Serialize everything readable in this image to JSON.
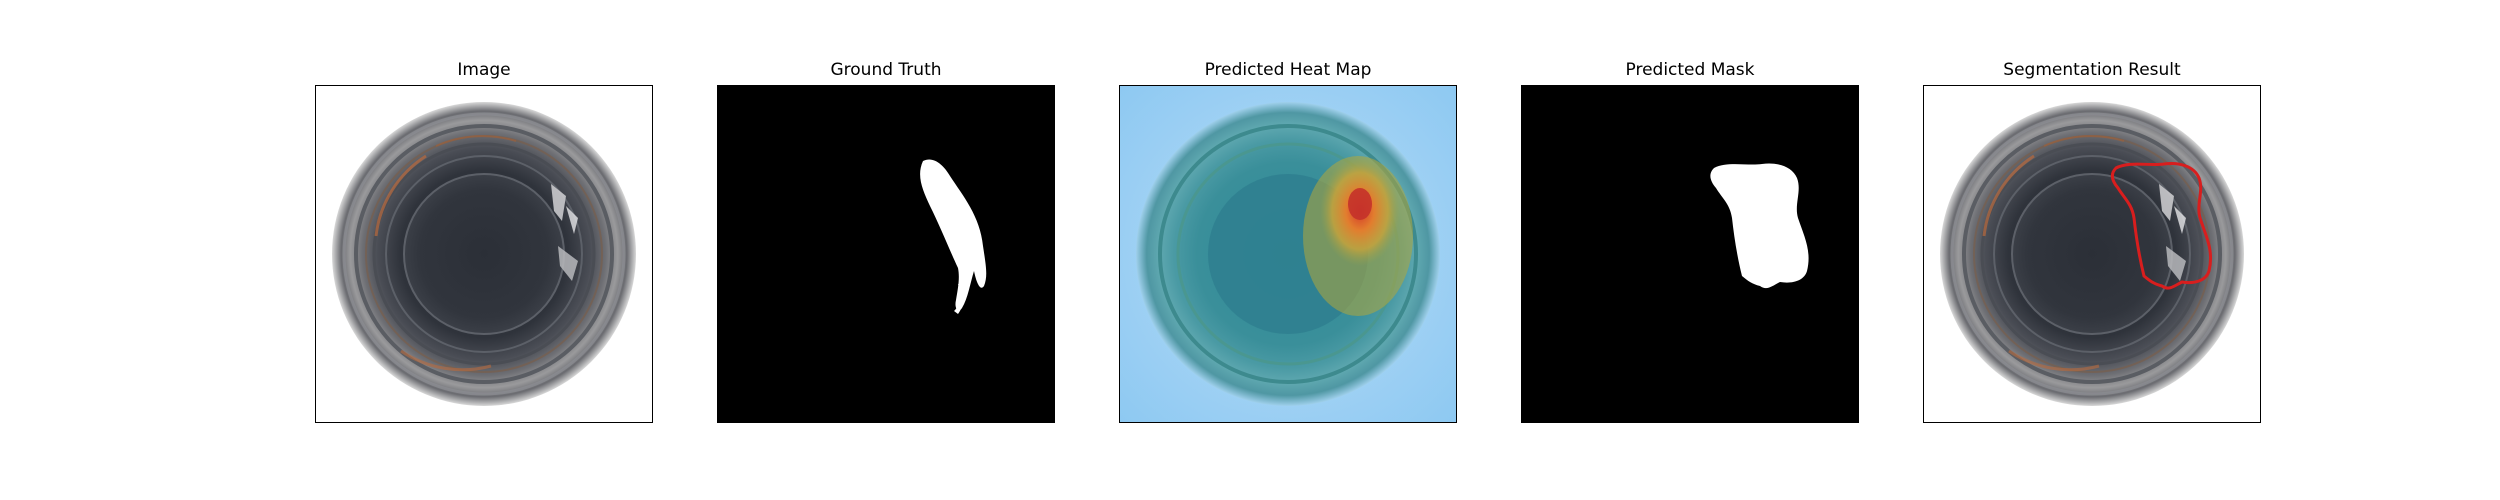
{
  "figure": {
    "panels": [
      {
        "title": "Image"
      },
      {
        "title": "Ground Truth"
      },
      {
        "title": "Predicted Heat Map"
      },
      {
        "title": "Predicted Mask"
      },
      {
        "title": "Segmentation Result"
      }
    ]
  },
  "colors": {
    "background": "#ffffff",
    "mask_background": "#000000",
    "mask_foreground": "#ffffff",
    "heatmap_low": "#8ec9f2",
    "heatmap_high": "#d43a2a",
    "contour": "#d81e1e"
  }
}
